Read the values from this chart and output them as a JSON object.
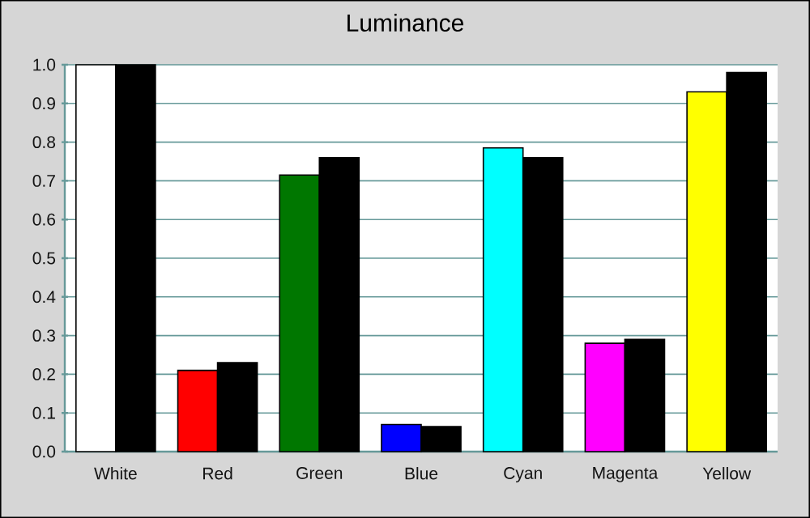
{
  "chart_data": {
    "type": "bar",
    "title": "Luminance",
    "categories": [
      "White",
      "Red",
      "Green",
      "Blue",
      "Cyan",
      "Magenta",
      "Yellow"
    ],
    "series": [
      {
        "colors": [
          "#ffffff",
          "#ff0000",
          "#007700",
          "#0000ff",
          "#00ffff",
          "#ff00ff",
          "#ffff00"
        ],
        "values": [
          1.0,
          0.21,
          0.715,
          0.07,
          0.785,
          0.28,
          0.93
        ]
      },
      {
        "color": "#000000",
        "values": [
          1.0,
          0.23,
          0.76,
          0.065,
          0.76,
          0.29,
          0.98
        ]
      }
    ],
    "ylim": [
      0,
      1
    ],
    "yticks": [
      {
        "value": 0,
        "label": "0.0"
      },
      0.1,
      0.2,
      0.3,
      0.4,
      0.5,
      0.6,
      0.7,
      0.8,
      0.9,
      {
        "value": 1,
        "label": "1.0"
      }
    ],
    "grid": "y"
  }
}
